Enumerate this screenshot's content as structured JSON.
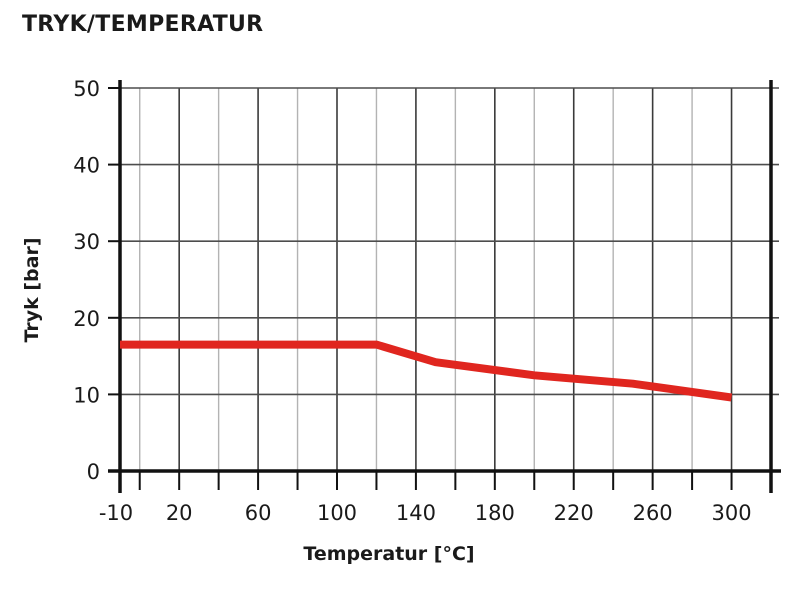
{
  "chart_data": {
    "type": "line",
    "title": "TRYK/TEMPERATUR",
    "xlabel": "Temperatur [°C]",
    "ylabel": "Tryk [bar]",
    "x_tick_labels": [
      "-10",
      "20",
      "60",
      "100",
      "140",
      "180",
      "220",
      "260",
      "300"
    ],
    "y_tick_labels": [
      "0",
      "10",
      "20",
      "30",
      "40",
      "50"
    ],
    "xlim": [
      -10,
      320
    ],
    "ylim": [
      0,
      50
    ],
    "grid": true,
    "series": [
      {
        "color": "#e0261f",
        "x": [
          -10,
          120,
          150,
          200,
          250,
          300
        ],
        "y": [
          16.5,
          16.5,
          14.2,
          12.5,
          11.4,
          9.6
        ]
      }
    ]
  }
}
